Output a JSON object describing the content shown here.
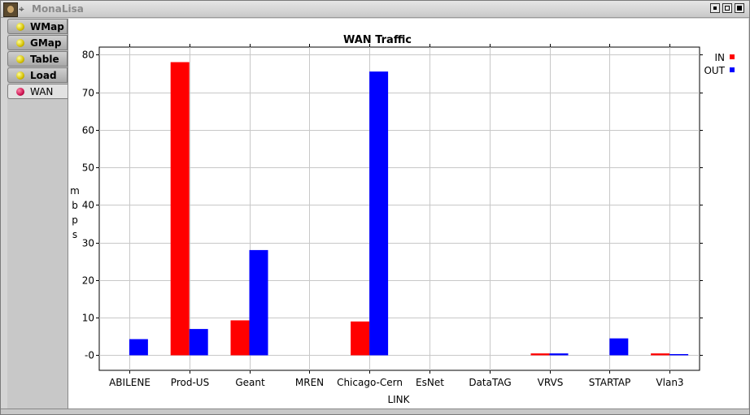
{
  "window": {
    "title": "MonaLisa",
    "app_icon": "mona-lisa-icon",
    "pin_icon": "pin-icon"
  },
  "tabs": [
    {
      "label": "WMap",
      "icon": "yellow-dot-icon",
      "active": false
    },
    {
      "label": "GMap",
      "icon": "yellow-dot-icon",
      "active": false
    },
    {
      "label": "Table",
      "icon": "yellow-dot-icon",
      "active": false
    },
    {
      "label": "Load",
      "icon": "yellow-dot-icon",
      "active": false
    },
    {
      "label": "WAN",
      "icon": "red-dot-icon",
      "active": true
    }
  ],
  "chart_data": {
    "type": "bar",
    "title": "WAN Traffic",
    "xlabel": "LINK",
    "ylabel": "mbps",
    "categories": [
      "ABILENE",
      "Prod-US",
      "Geant",
      "MREN",
      "Chicago-Cern",
      "EsNet",
      "DataTAG",
      "VRVS",
      "STARTAP",
      "Vlan3"
    ],
    "series": [
      {
        "name": "IN",
        "color": "#ff0000",
        "values": [
          0,
          78,
          9.3,
          0,
          9,
          0,
          0,
          0.5,
          0,
          0.5
        ]
      },
      {
        "name": "OUT",
        "color": "#0000ff",
        "values": [
          4.3,
          7,
          28,
          0,
          75.5,
          0,
          0,
          0.5,
          4.5,
          0.3
        ]
      }
    ],
    "ylim": [
      -4,
      82
    ],
    "yticks": [
      0,
      10,
      20,
      30,
      40,
      50,
      60,
      70,
      80
    ],
    "ytick_labels": [
      "-0",
      "10",
      "20",
      "30",
      "40",
      "50",
      "60",
      "70",
      "80"
    ],
    "grid": true,
    "legend_position": "top-right"
  }
}
